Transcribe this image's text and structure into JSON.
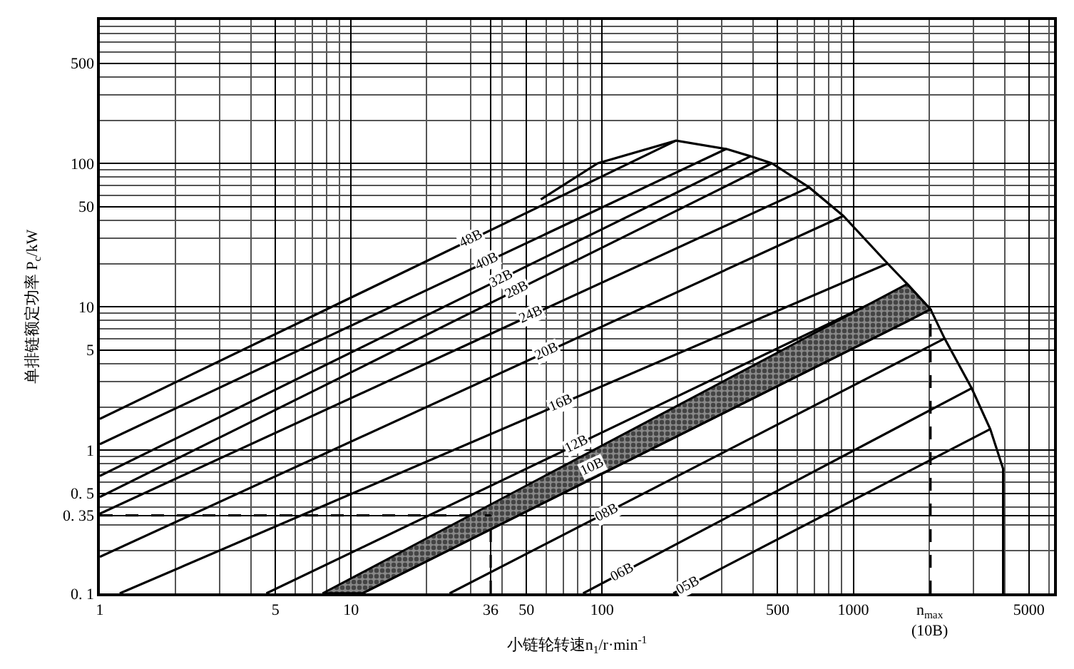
{
  "chart_data": {
    "type": "line",
    "xlabel": "小链轮转速n$_{1}$/r·min$^{-1}$",
    "ylabel": "单排链额定功率 P$_{c}$/kW",
    "log": "xy",
    "xlim": [
      1,
      6300
    ],
    "ylim": [
      0.1,
      1000
    ],
    "xticks": [
      1,
      5,
      10,
      36,
      50,
      100,
      500,
      1000,
      5000
    ],
    "annotations": [
      {
        "text": "n$_{max}$\n(10B)",
        "x": 2030,
        "y": 0.1
      }
    ],
    "yticks": [
      {
        "value": 0.1,
        "label": "0. 1"
      },
      {
        "value": 0.35,
        "label": "0. 35"
      },
      {
        "value": 0.5,
        "label": "0. 5"
      },
      1,
      5,
      10,
      50,
      100,
      500
    ],
    "grid": true,
    "series": [
      {
        "name": "48B",
        "color": "#000000",
        "x": [
          1,
          197
        ],
        "values": [
          1.65,
          144
        ]
      },
      {
        "name": "40B",
        "color": "#000000",
        "x": [
          1,
          312
        ],
        "values": [
          1.1,
          126
        ]
      },
      {
        "name": "32B",
        "color": "#000000",
        "x": [
          1,
          390
        ],
        "values": [
          0.66,
          112
        ]
      },
      {
        "name": "28B",
        "color": "#000000",
        "x": [
          1,
          474
        ],
        "values": [
          0.47,
          100
        ]
      },
      {
        "name": "24B",
        "color": "#000000",
        "x": [
          1,
          667
        ],
        "values": [
          0.36,
          68
        ]
      },
      {
        "name": "20B",
        "color": "#000000",
        "x": [
          1,
          913
        ],
        "values": [
          0.18,
          43
        ]
      },
      {
        "name": "16B",
        "color": "#000000",
        "x": [
          1.2,
          1370
        ],
        "values": [
          0.1,
          20
        ]
      },
      {
        "name": "12B",
        "color": "#000000",
        "x": [
          4.6,
          1500
        ],
        "values": [
          0.1,
          12.9
        ]
      },
      {
        "name": "10B",
        "color": "#000000",
        "x": [
          7.7,
          11.1,
          1640,
          2030
        ],
        "values": [
          0.1,
          0.1,
          7.9,
          9.6
        ],
        "lower": [
          0.1,
          0.1,
          7.9,
          9.6
        ],
        "upper": [
          0.1,
          0.14,
          14.4,
          9.6
        ]
      },
      {
        "name": "08B",
        "color": "#000000",
        "x": [
          24.7,
          2310
        ],
        "values": [
          0.1,
          6.0
        ]
      },
      {
        "name": "06B",
        "color": "#000000",
        "x": [
          84,
          2960
        ],
        "values": [
          0.1,
          2.7
        ]
      },
      {
        "name": "05B",
        "color": "#000000",
        "x": [
          192,
          3510
        ],
        "values": [
          0.1,
          1.4
        ]
      },
      {
        "color": "#000000",
        "x": [
          57,
          96,
          197,
          312,
          390,
          474,
          667,
          913,
          1370,
          1640,
          2030,
          2310,
          2960,
          3510,
          3950,
          3950
        ],
        "values": [
          56,
          100,
          144,
          126,
          112,
          100,
          68,
          43,
          20,
          14.4,
          9.6,
          6.0,
          2.7,
          1.4,
          0.74,
          0.1
        ]
      },
      {
        "color": "#000000",
        "line_style": "dashed",
        "x": [
          1,
          36
        ],
        "values": [
          0.35,
          0.35
        ]
      },
      {
        "color": "#000000",
        "line_style": "dashed",
        "x": [
          36,
          36
        ],
        "values": [
          0.1,
          0.35
        ]
      },
      {
        "color": "#000000",
        "line_style": "dashed",
        "x": [
          2030,
          2030
        ],
        "values": [
          0.1,
          9.6
        ]
      }
    ]
  }
}
